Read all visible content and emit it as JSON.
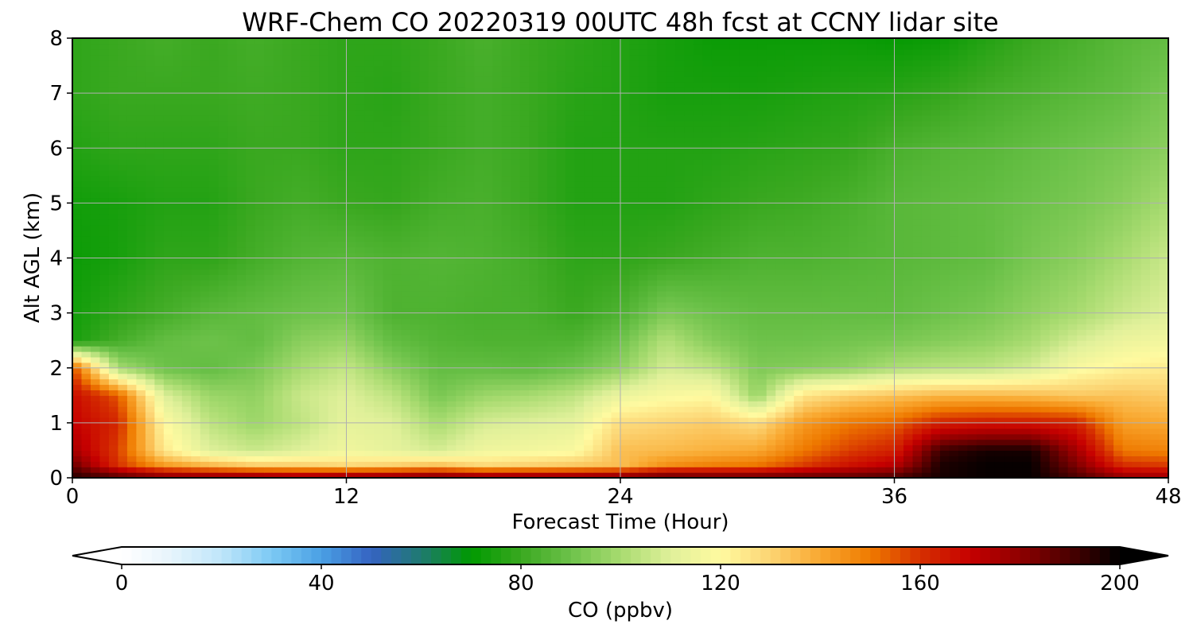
{
  "chart_data": {
    "type": "heatmap",
    "title": "WRF-Chem CO  20220319 00UTC 48h fcst at CCNY lidar site",
    "xlabel": "Forecast Time (Hour)",
    "ylabel": "Alt AGL (km)",
    "xlim": [
      0,
      48
    ],
    "ylim": [
      0,
      8
    ],
    "xticks": [
      0,
      12,
      24,
      36,
      48
    ],
    "yticks": [
      0,
      1,
      2,
      3,
      4,
      5,
      6,
      7,
      8
    ],
    "grid": true,
    "colorbar": {
      "label": "CO  (ppbv)",
      "min": 0,
      "max": 200,
      "ticks": [
        0,
        40,
        80,
        120,
        160,
        200
      ],
      "extend": "both",
      "orientation": "horizontal",
      "colors": [
        "#ffffff",
        "#e6f4fc",
        "#bfe6fa",
        "#7cc9f4",
        "#4aa0e4",
        "#3563c2",
        "#1f7a70",
        "#009900",
        "#3aa820",
        "#6dc24a",
        "#a8db70",
        "#e0f09a",
        "#fffaa0",
        "#fcd473",
        "#f9a830",
        "#ef7a00",
        "#d63000",
        "#c60000",
        "#8e0000",
        "#4a0000",
        "#000000"
      ]
    },
    "x": [
      0,
      2,
      4,
      6,
      8,
      10,
      12,
      14,
      16,
      18,
      20,
      22,
      24,
      26,
      28,
      30,
      32,
      34,
      36,
      38,
      40,
      42,
      44,
      46,
      48
    ],
    "y": [
      0,
      0.25,
      0.5,
      1,
      1.5,
      2,
      2.5,
      3,
      4,
      5,
      6,
      7,
      8
    ],
    "z": [
      [
        195,
        190,
        185,
        185,
        185,
        182,
        185,
        185,
        188,
        185,
        185,
        185,
        186,
        190,
        188,
        188,
        188,
        188,
        190,
        197,
        199,
        199,
        190,
        180,
        178
      ],
      [
        185,
        160,
        142,
        135,
        130,
        130,
        128,
        130,
        133,
        128,
        130,
        132,
        135,
        145,
        148,
        150,
        158,
        166,
        172,
        196,
        199,
        199,
        182,
        160,
        158
      ],
      [
        176,
        158,
        125,
        110,
        106,
        110,
        115,
        112,
        108,
        115,
        116,
        118,
        135,
        136,
        138,
        140,
        150,
        158,
        163,
        192,
        197,
        197,
        176,
        150,
        148
      ],
      [
        170,
        162,
        120,
        104,
        98,
        104,
        112,
        110,
        100,
        108,
        110,
        112,
        128,
        130,
        132,
        128,
        143,
        150,
        153,
        163,
        165,
        165,
        163,
        142,
        140
      ],
      [
        168,
        155,
        110,
        98,
        96,
        106,
        110,
        104,
        92,
        98,
        100,
        104,
        114,
        118,
        120,
        97,
        126,
        131,
        134,
        137,
        137,
        136,
        133,
        134,
        132
      ],
      [
        157,
        100,
        90,
        88,
        92,
        100,
        105,
        95,
        88,
        88,
        87,
        90,
        96,
        108,
        104,
        93,
        94,
        96,
        101,
        103,
        104,
        108,
        118,
        122,
        124
      ],
      [
        74,
        82,
        88,
        90,
        88,
        95,
        97,
        88,
        85,
        84,
        84,
        84,
        90,
        102,
        94,
        90,
        90,
        91,
        92,
        94,
        96,
        100,
        108,
        114,
        116
      ],
      [
        73,
        78,
        82,
        86,
        88,
        90,
        91,
        84,
        84,
        83,
        83,
        80,
        84,
        93,
        90,
        88,
        88,
        88,
        88,
        90,
        92,
        96,
        100,
        106,
        110
      ],
      [
        72,
        74,
        78,
        78,
        82,
        85,
        86,
        84,
        85,
        84,
        82,
        78,
        78,
        80,
        82,
        84,
        84,
        85,
        86,
        87,
        88,
        92,
        95,
        100,
        106
      ],
      [
        73,
        74,
        76,
        76,
        80,
        82,
        80,
        79,
        82,
        83,
        80,
        76,
        76,
        76,
        78,
        80,
        81,
        83,
        86,
        87,
        88,
        90,
        92,
        95,
        100
      ],
      [
        76,
        78,
        78,
        78,
        80,
        80,
        78,
        78,
        80,
        82,
        80,
        76,
        76,
        76,
        76,
        77,
        78,
        79,
        83,
        85,
        86,
        88,
        90,
        92,
        95
      ],
      [
        78,
        80,
        80,
        80,
        81,
        80,
        78,
        77,
        80,
        82,
        80,
        77,
        76,
        74,
        74,
        74,
        75,
        76,
        77,
        79,
        82,
        84,
        86,
        88,
        92
      ],
      [
        78,
        80,
        82,
        80,
        82,
        80,
        78,
        78,
        80,
        83,
        80,
        78,
        76,
        74,
        72,
        72,
        72,
        72,
        71,
        72,
        76,
        80,
        83,
        86,
        88
      ]
    ]
  }
}
